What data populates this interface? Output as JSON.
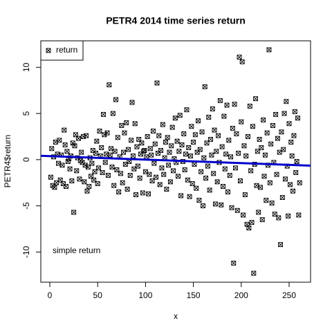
{
  "chart_data": {
    "type": "scatter",
    "title": "PETR4 2014 time series return",
    "x_label": "x",
    "y_label": "PETR4$return",
    "annotation": "simple return",
    "legend": "topleft",
    "series": [
      {
        "name": "return",
        "color": "#000000",
        "x": [
          1,
          2,
          3,
          4,
          5,
          6,
          7,
          8,
          9,
          10,
          11,
          12,
          13,
          14,
          15,
          16,
          17,
          18,
          19,
          20,
          21,
          22,
          23,
          24,
          25,
          26,
          27,
          28,
          29,
          30,
          31,
          32,
          33,
          34,
          35,
          36,
          37,
          38,
          39,
          40,
          41,
          42,
          43,
          44,
          45,
          46,
          47,
          48,
          49,
          50,
          51,
          52,
          53,
          54,
          55,
          56,
          57,
          58,
          59,
          60,
          61,
          62,
          63,
          64,
          65,
          66,
          67,
          68,
          69,
          70,
          71,
          72,
          73,
          74,
          75,
          76,
          77,
          78,
          79,
          80,
          81,
          82,
          83,
          84,
          85,
          86,
          87,
          88,
          89,
          90,
          91,
          92,
          93,
          94,
          95,
          96,
          97,
          98,
          99,
          100,
          101,
          102,
          103,
          104,
          105,
          106,
          107,
          108,
          109,
          110,
          111,
          112,
          113,
          114,
          115,
          116,
          117,
          118,
          119,
          120,
          121,
          122,
          123,
          124,
          125,
          126,
          127,
          128,
          129,
          130,
          131,
          132,
          133,
          134,
          135,
          136,
          137,
          138,
          139,
          140,
          141,
          142,
          143,
          144,
          145,
          146,
          147,
          148,
          149,
          150,
          151,
          152,
          153,
          154,
          155,
          156,
          157,
          158,
          159,
          160,
          161,
          162,
          163,
          164,
          165,
          166,
          167,
          168,
          169,
          170,
          171,
          172,
          173,
          174,
          175,
          176,
          177,
          178,
          179,
          180,
          181,
          182,
          183,
          184,
          185,
          186,
          187,
          188,
          189,
          190,
          191,
          192,
          193,
          194,
          195,
          196,
          197,
          198,
          199,
          200,
          201,
          202,
          203,
          204,
          205,
          206,
          207,
          208,
          209,
          210,
          211,
          212,
          213,
          214,
          215,
          216,
          217,
          218,
          219,
          220,
          221,
          222,
          223,
          224,
          225,
          226,
          227,
          228,
          229,
          230,
          231,
          232,
          233,
          234,
          235,
          236,
          237,
          238,
          239,
          240,
          241,
          242,
          243,
          244,
          245,
          246,
          247,
          248,
          249,
          250,
          251,
          252,
          253,
          254,
          255,
          256,
          257,
          258,
          259,
          260,
          261
        ],
        "values": [
          -1.9,
          1.2,
          -2.8,
          0.3,
          -3.0,
          1.9,
          -2.5,
          0.6,
          -0.4,
          2.1,
          -2.2,
          0.5,
          -0.6,
          -2.6,
          3.2,
          1.6,
          -2.9,
          0.9,
          -0.2,
          0.1,
          -1.0,
          0.4,
          -2.3,
          1.8,
          -5.7,
          1.5,
          2.7,
          -1.2,
          0.2,
          2.3,
          -2.1,
          -0.1,
          0.8,
          -0.3,
          2.5,
          -2.4,
          -0.6,
          2.6,
          -3.4,
          -0.8,
          -2.9,
          0.2,
          -1.8,
          -0.4,
          1.0,
          -2.2,
          -1.3,
          0.7,
          2.0,
          -2.6,
          -0.9,
          3.1,
          0.4,
          1.3,
          -1.4,
          4.9,
          2.7,
          -0.3,
          0.6,
          2.9,
          -1.7,
          8.1,
          0.5,
          1.2,
          -0.8,
          5.0,
          -2.8,
          0.9,
          6.5,
          -1.1,
          2.4,
          -3.5,
          0.3,
          -1.5,
          3.7,
          -2.5,
          0.8,
          2.9,
          -0.5,
          4.0,
          -3.2,
          1.1,
          -0.2,
          -1.7,
          2.1,
          6.2,
          0.4,
          -1.0,
          3.9,
          -3.8,
          1.4,
          -0.7,
          2.2,
          -2.0,
          0.6,
          1.8,
          -3.6,
          0.9,
          1.0,
          -1.3,
          0.3,
          2.5,
          -3.7,
          -1.6,
          1.2,
          0.5,
          -2.3,
          3.1,
          -0.4,
          1.7,
          -1.9,
          8.3,
          0.7,
          2.6,
          -2.7,
          1.0,
          -0.9,
          3.8,
          -1.6,
          0.2,
          1.9,
          -3.2,
          2.4,
          -0.6,
          0.8,
          -2.4,
          1.5,
          3.5,
          -1.2,
          0.1,
          4.5,
          -0.3,
          2.0,
          -1.8,
          0.9,
          4.8,
          -3.9,
          1.6,
          -0.2,
          2.8,
          -1.1,
          0.6,
          5.4,
          -2.2,
          1.3,
          -4.0,
          0.4,
          3.6,
          -2.6,
          1.9,
          -0.5,
          2.7,
          -3.1,
          0.8,
          4.2,
          -4.4,
          1.1,
          -1.3,
          3.0,
          -5.0,
          0.2,
          7.9,
          -2.0,
          1.8,
          -0.7,
          4.6,
          -3.3,
          2.2,
          0.5,
          5.5,
          -1.5,
          3.2,
          -4.8,
          0.9,
          -2.4,
          2.6,
          -0.3,
          6.4,
          -4.9,
          1.4,
          -2.9,
          4.7,
          -1.0,
          0.6,
          5.9,
          -3.5,
          2.1,
          -1.7,
          0.3,
          -5.2,
          3.4,
          -11.2,
          6.0,
          -0.9,
          2.8,
          -5.5,
          0.7,
          11.1,
          -2.3,
          4.1,
          10.6,
          -6.0,
          1.5,
          -3.8,
          0.4,
          -7.0,
          2.5,
          -7.4,
          5.8,
          -1.2,
          -6.8,
          3.6,
          -12.3,
          -0.5,
          6.6,
          -2.8,
          0.9,
          -5.7,
          2.2,
          -3.0,
          1.3,
          -6.5,
          4.3,
          -1.8,
          0.5,
          -4.4,
          2.9,
          -0.6,
          11.9,
          -2.5,
          1.7,
          -4.7,
          3.7,
          -0.3,
          -5.9,
          4.9,
          -1.6,
          2.3,
          -6.3,
          0.8,
          -9.2,
          3.0,
          -4.1,
          1.1,
          5.0,
          -2.1,
          6.3,
          -0.7,
          -6.1,
          3.9,
          -2.7,
          1.9,
          0.4,
          -3.4,
          2.6,
          5.2,
          -1.4,
          -0.2,
          4.5,
          -6.0,
          -2.5
        ]
      }
    ],
    "trend": {
      "color": "#0000cd",
      "x": [
        -9.4,
        272.4
      ],
      "y": [
        0.42,
        -0.65
      ]
    },
    "xlim": [
      -9.4,
      272.4
    ],
    "xticks": [
      0,
      50,
      100,
      150,
      200,
      250
    ],
    "ylim": [
      -13.27,
      12.87
    ],
    "yticks": [
      -10,
      -5,
      0,
      5,
      10
    ]
  }
}
